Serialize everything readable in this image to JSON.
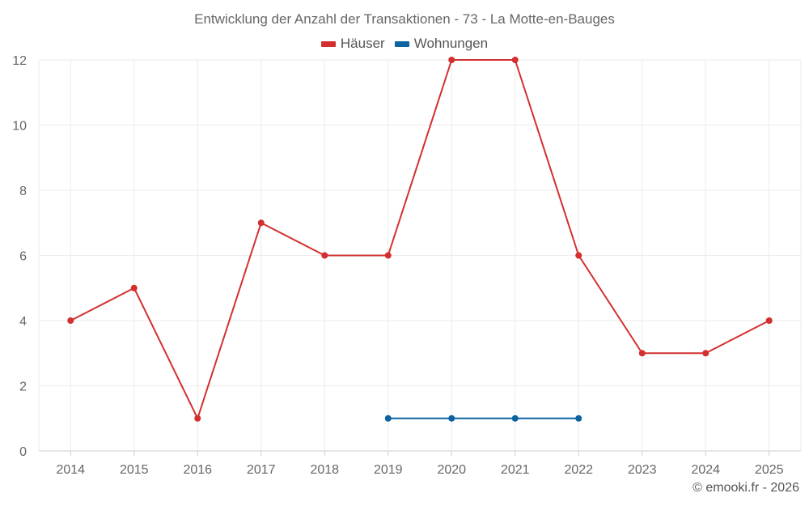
{
  "chart_data": {
    "type": "line",
    "title": "Entwicklung der Anzahl der Transaktionen - 73 - La Motte-en-Bauges",
    "categories": [
      "2014",
      "2015",
      "2016",
      "2017",
      "2018",
      "2019",
      "2020",
      "2021",
      "2022",
      "2023",
      "2024",
      "2025"
    ],
    "series": [
      {
        "name": "Häuser",
        "color": "#d32f2f",
        "values": [
          4,
          5,
          1,
          7,
          6,
          6,
          12,
          12,
          6,
          3,
          3,
          4
        ]
      },
      {
        "name": "Wohnungen",
        "color": "#0d62a0",
        "values": [
          null,
          null,
          null,
          null,
          null,
          1,
          1,
          1,
          1,
          null,
          null,
          null
        ]
      }
    ],
    "xlabel": "",
    "ylabel": "",
    "ylim": [
      0,
      12
    ],
    "yticks": [
      0,
      2,
      4,
      6,
      8,
      10,
      12
    ],
    "grid": true,
    "legend_position": "top-center"
  },
  "credit": "© emooki.fr - 2026"
}
